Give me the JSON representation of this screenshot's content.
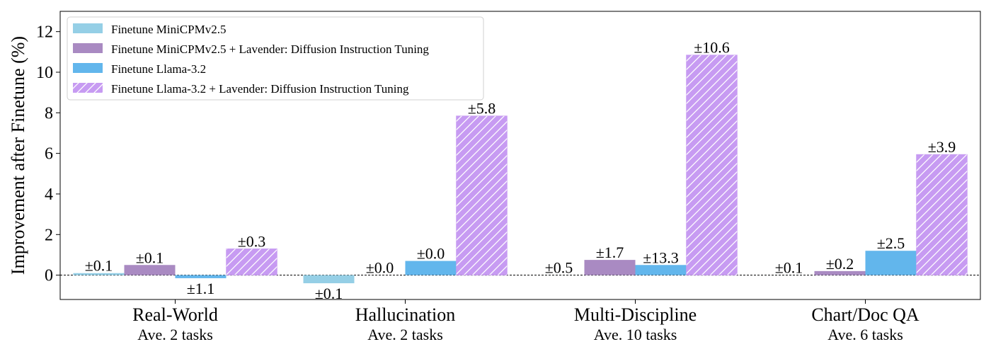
{
  "chart_data": {
    "type": "bar",
    "ylabel": "Improvement after Finetune (%)",
    "ylim": [
      -1.2,
      13
    ],
    "yticks": [
      0,
      2,
      4,
      6,
      8,
      10,
      12
    ],
    "grid": false,
    "legend_position": "top-left",
    "zero_line": "dashed",
    "categories": [
      {
        "name": "Real-World",
        "sub": "Ave. 2 tasks"
      },
      {
        "name": "Hallucination",
        "sub": "Ave. 2 tasks"
      },
      {
        "name": "Multi-Discipline",
        "sub": "Ave. 10 tasks"
      },
      {
        "name": "Chart/Doc QA",
        "sub": "Ave. 6 tasks"
      }
    ],
    "series": [
      {
        "name": "Finetune MiniCPMv2.5",
        "color": "#95cfe6",
        "hatch": false,
        "values": [
          0.1,
          -0.4,
          0.0,
          0.0
        ],
        "errors": [
          "±0.1",
          "±0.1",
          "±0.5",
          "±0.1"
        ]
      },
      {
        "name": "Finetune MiniCPMv2.5  + Lavender: Diffusion Instruction Tuning",
        "color": "#a98ac2",
        "hatch": false,
        "values": [
          0.5,
          0.0,
          0.75,
          0.2
        ],
        "errors": [
          "±0.1",
          "±0.0",
          "±1.7",
          "±0.2"
        ]
      },
      {
        "name": "Finetune Llama-3.2",
        "color": "#62b6ec",
        "hatch": false,
        "values": [
          -0.15,
          0.7,
          0.5,
          1.2
        ],
        "errors": [
          "±1.1",
          "±0.0",
          "±13.3",
          "±2.5"
        ]
      },
      {
        "name": "Finetune Llama-3.2  + Lavender: Diffusion Instruction Tuning",
        "color": "#c79bf2",
        "hatch": true,
        "values": [
          1.3,
          7.85,
          10.85,
          5.95
        ],
        "errors": [
          "±0.3",
          "±5.8",
          "±10.6",
          "±3.9"
        ]
      }
    ]
  }
}
